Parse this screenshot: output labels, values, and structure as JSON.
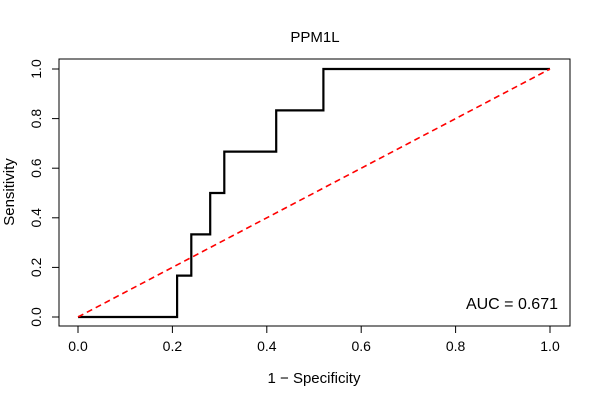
{
  "chart_data": {
    "type": "line",
    "title": "PPM1L",
    "xlabel": "1 − Specificity",
    "ylabel": "Sensitivity",
    "xlim": [
      0,
      1
    ],
    "ylim": [
      0,
      1
    ],
    "x_ticks": [
      "0.0",
      "0.2",
      "0.4",
      "0.6",
      "0.8",
      "1.0"
    ],
    "y_ticks": [
      "0.0",
      "0.2",
      "0.4",
      "0.6",
      "0.8",
      "1.0"
    ],
    "grid": false,
    "annotation": "AUC = 0.671",
    "series": [
      {
        "role": "roc",
        "color": "#000000",
        "style": "solid",
        "x": [
          0.0,
          0.21,
          0.21,
          0.24,
          0.24,
          0.28,
          0.28,
          0.31,
          0.31,
          0.42,
          0.42,
          0.52,
          0.52,
          1.0
        ],
        "y": [
          0.0,
          0.0,
          0.167,
          0.167,
          0.333,
          0.333,
          0.5,
          0.5,
          0.667,
          0.667,
          0.833,
          0.833,
          1.0,
          1.0
        ]
      },
      {
        "role": "reference",
        "color": "#ff0000",
        "style": "dashed",
        "x": [
          0.0,
          1.0
        ],
        "y": [
          0.0,
          1.0
        ]
      }
    ]
  }
}
